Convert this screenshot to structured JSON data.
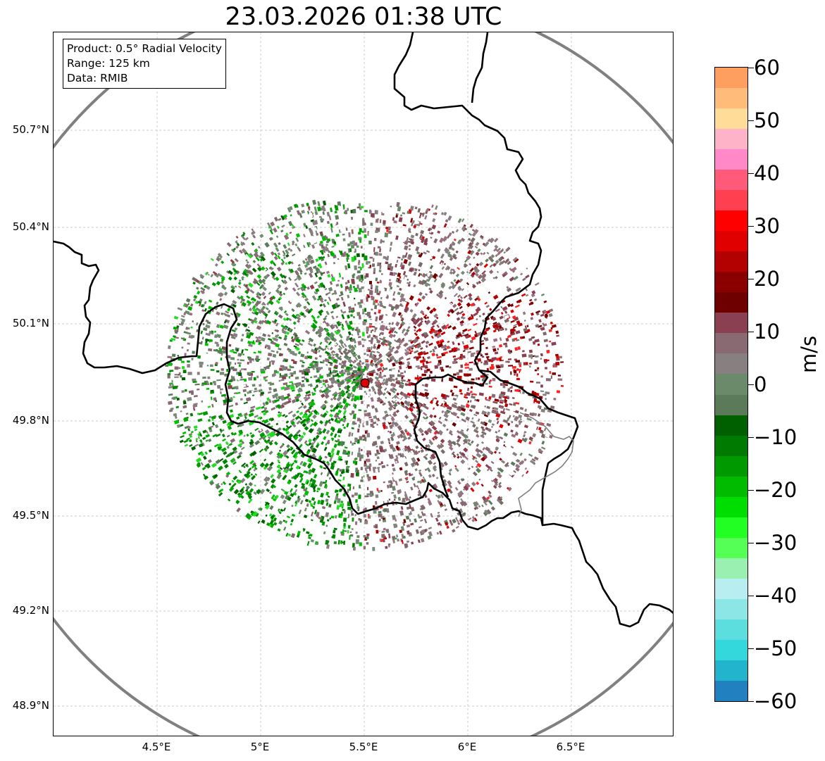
{
  "title": "23.03.2026 01:38 UTC",
  "info_box": {
    "product": "Product: 0.5° Radial Velocity",
    "range": "Range: 125 km",
    "data": "Data: RMIB"
  },
  "axes": {
    "lat_labels": [
      "50.7°N",
      "50.4°N",
      "50.1°N",
      "49.8°N",
      "49.5°N",
      "49.2°N",
      "48.9°N"
    ],
    "lon_labels": [
      "4.5°E",
      "5°E",
      "5.5°E",
      "6°E",
      "6.5°E"
    ]
  },
  "colorbar": {
    "unit": "m/s",
    "ticks": [
      "60",
      "50",
      "40",
      "30",
      "20",
      "10",
      "0",
      "−10",
      "−20",
      "−30",
      "−40",
      "−50",
      "−60"
    ],
    "range": [
      -60,
      60
    ],
    "colors_top_to_bottom": [
      "#ff9f5f",
      "#ffbb7a",
      "#ffdd99",
      "#ffb3c8",
      "#ff88c8",
      "#ff5a7a",
      "#ff4050",
      "#ff0000",
      "#e00000",
      "#b30000",
      "#8a0000",
      "#6e0000",
      "#8a4050",
      "#8a6a72",
      "#888080",
      "#6a8a6a",
      "#5a7a5a",
      "#006000",
      "#007a00",
      "#009a00",
      "#00bb00",
      "#00dd00",
      "#22ff22",
      "#55ff55",
      "#99f0b0",
      "#b8eef0",
      "#8de6e6",
      "#5cdede",
      "#33d8dd",
      "#22b4cc",
      "#2080c0"
    ]
  },
  "map": {
    "center_lat": 49.91,
    "center_lon": 5.51,
    "radar_site_color": "#e00000",
    "range_ring_color": "#808080",
    "border_color": "#000000"
  }
}
